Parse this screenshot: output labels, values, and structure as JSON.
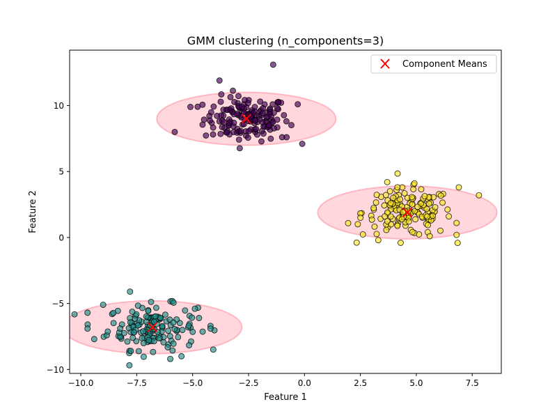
{
  "chart_data": {
    "type": "scatter",
    "title": "GMM clustering (n_components=3)",
    "xlabel": "Feature 1",
    "ylabel": "Feature 2",
    "xlim": [
      -10.5,
      8.8
    ],
    "ylim": [
      -10.3,
      14.2
    ],
    "xticks": [
      -10.0,
      -7.5,
      -5.0,
      -2.5,
      0.0,
      2.5,
      5.0,
      7.5
    ],
    "xtick_labels": [
      "−10.0",
      "−7.5",
      "−5.0",
      "−2.5",
      "0.0",
      "2.5",
      "5.0",
      "7.5"
    ],
    "yticks": [
      -10,
      -5,
      0,
      5,
      10
    ],
    "ytick_labels": [
      "−10",
      "−5",
      "0",
      "5",
      "10"
    ],
    "grid": false,
    "legend": {
      "position": "top-right",
      "entries": [
        "Component Means"
      ]
    },
    "clusters": [
      {
        "color": "#440154",
        "mean": [
          -2.6,
          9.0
        ],
        "ellipse_radii": [
          4.0,
          2.0
        ],
        "spread": [
          0.95,
          0.85
        ],
        "n_points": 150,
        "outliers": [
          [
            -1.4,
            13.1
          ],
          [
            -3.8,
            11.9
          ],
          [
            -5.1,
            9.9
          ],
          [
            -5.8,
            8.0
          ],
          [
            -0.1,
            7.1
          ],
          [
            -0.3,
            10.1
          ],
          [
            -0.8,
            7.6
          ],
          [
            -1.0,
            7.6
          ]
        ]
      },
      {
        "color": "#21918c",
        "mean": [
          -6.8,
          -6.8
        ],
        "ellipse_radii": [
          4.0,
          2.0
        ],
        "spread": [
          1.0,
          0.85
        ],
        "n_points": 150,
        "outliers": [
          [
            -7.8,
            -4.1
          ],
          [
            -9.7,
            -6.9
          ],
          [
            -9.7,
            -5.7
          ],
          [
            -9.4,
            -7.7
          ],
          [
            -9.0,
            -5.1
          ],
          [
            -4.2,
            -6.7
          ],
          [
            -4.2,
            -6.9
          ],
          [
            -4.9,
            -5.4
          ],
          [
            -6.0,
            -9.2
          ],
          [
            -5.5,
            -9.0
          ]
        ]
      },
      {
        "color": "#fde725",
        "mean": [
          4.6,
          1.9
        ],
        "ellipse_radii": [
          4.0,
          2.0
        ],
        "spread": [
          1.0,
          0.9
        ],
        "n_points": 150,
        "outliers": [
          [
            7.8,
            3.2
          ],
          [
            6.9,
            3.8
          ],
          [
            6.8,
            1.1
          ],
          [
            6.8,
            0.2
          ],
          [
            3.7,
            4.2
          ],
          [
            3.3,
            -0.2
          ],
          [
            4.3,
            -0.4
          ],
          [
            2.5,
            1.5
          ],
          [
            5.6,
            0.1
          ]
        ]
      }
    ],
    "means_marker": {
      "color": "#ff0000",
      "shape": "x"
    },
    "ellipse_color": "#ffb6c1"
  }
}
